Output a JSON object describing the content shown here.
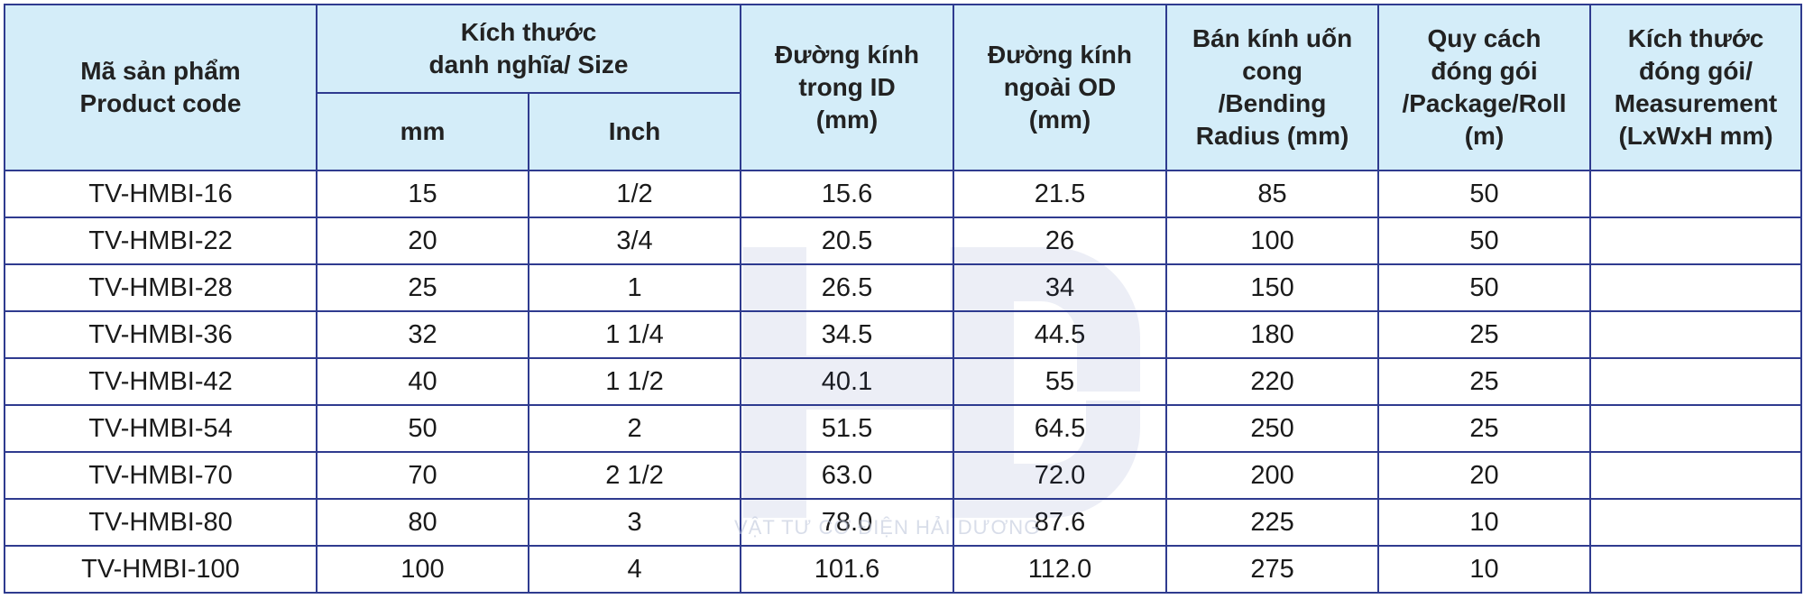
{
  "table": {
    "headers": {
      "product_code": "Mã sản phẩm\nProduct code",
      "nominal_size": "Kích thước\ndanh nghĩa/ Size",
      "mm": "mm",
      "inch": "Inch",
      "inner_diameter": "Đường kính\ntrong ID\n(mm)",
      "outer_diameter": "Đường kính\nngoài OD\n(mm)",
      "bending_radius": "Bán kính uốn\ncong\n/Bending\nRadius (mm)",
      "package": "Quy cách\nđóng gói\n/Package/Roll\n(m)",
      "measurement": "Kích thước\nđóng gói/\nMeasurement\n(LxWxH mm)"
    },
    "rows": [
      {
        "code": "TV-HMBI-16",
        "mm": "15",
        "inch": "1/2",
        "id": "15.6",
        "od": "21.5",
        "radius": "85",
        "roll": "50",
        "measure": ""
      },
      {
        "code": "TV-HMBI-22",
        "mm": "20",
        "inch": "3/4",
        "id": "20.5",
        "od": "26",
        "radius": "100",
        "roll": "50",
        "measure": ""
      },
      {
        "code": "TV-HMBI-28",
        "mm": "25",
        "inch": "1",
        "id": "26.5",
        "od": "34",
        "radius": "150",
        "roll": "50",
        "measure": ""
      },
      {
        "code": "TV-HMBI-36",
        "mm": "32",
        "inch": "1 1/4",
        "id": "34.5",
        "od": "44.5",
        "radius": "180",
        "roll": "25",
        "measure": ""
      },
      {
        "code": "TV-HMBI-42",
        "mm": "40",
        "inch": "1 1/2",
        "id": "40.1",
        "od": "55",
        "radius": "220",
        "roll": "25",
        "measure": ""
      },
      {
        "code": "TV-HMBI-54",
        "mm": "50",
        "inch": "2",
        "id": "51.5",
        "od": "64.5",
        "radius": "250",
        "roll": "25",
        "measure": ""
      },
      {
        "code": "TV-HMBI-70",
        "mm": "70",
        "inch": "2 1/2",
        "id": "63.0",
        "od": "72.0",
        "radius": "200",
        "roll": "20",
        "measure": ""
      },
      {
        "code": "TV-HMBI-80",
        "mm": "80",
        "inch": "3",
        "id": "78.0",
        "od": "87.6",
        "radius": "225",
        "roll": "10",
        "measure": ""
      },
      {
        "code": "TV-HMBI-100",
        "mm": "100",
        "inch": "4",
        "id": "101.6",
        "od": "112.0",
        "radius": "275",
        "roll": "10",
        "measure": ""
      }
    ]
  },
  "watermark": {
    "text": "VẬT TƯ CƠ ĐIỆN HẢI DƯƠNG"
  },
  "colors": {
    "header_bg": "#d4edf9",
    "border": "#2f3b8f"
  }
}
